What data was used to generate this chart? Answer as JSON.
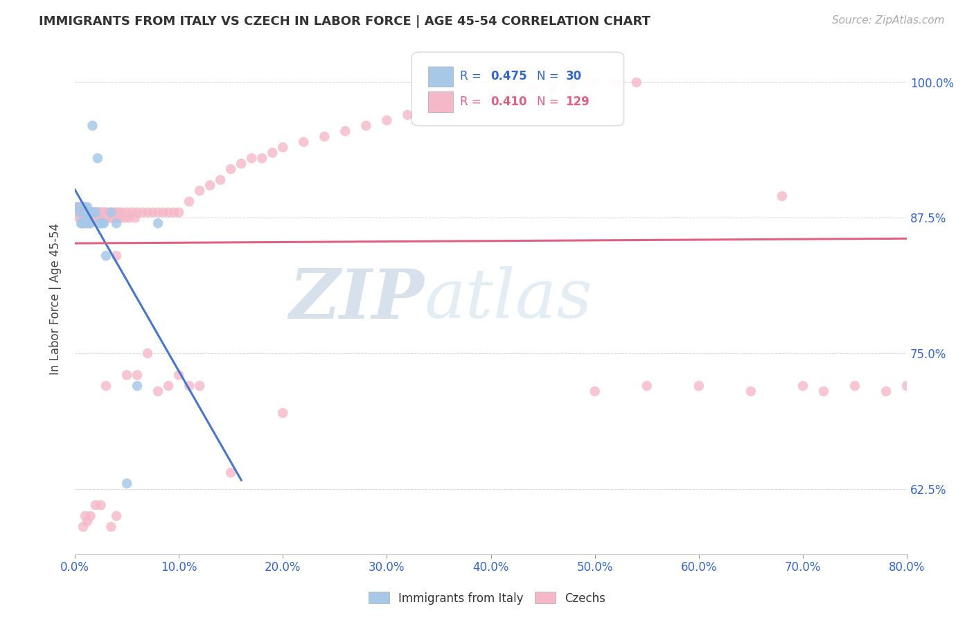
{
  "title": "IMMIGRANTS FROM ITALY VS CZECH IN LABOR FORCE | AGE 45-54 CORRELATION CHART",
  "source": "Source: ZipAtlas.com",
  "ylabel": "In Labor Force | Age 45-54",
  "ytick_values": [
    0.625,
    0.75,
    0.875,
    1.0
  ],
  "ytick_labels": [
    "62.5%",
    "75.0%",
    "87.5%",
    "100.0%"
  ],
  "xlim": [
    0.0,
    0.8
  ],
  "ylim": [
    0.565,
    1.035
  ],
  "r_italy": 0.475,
  "n_italy": 30,
  "r_czech": 0.41,
  "n_czech": 129,
  "italy_color": "#a8c8e8",
  "czech_color": "#f5b8c8",
  "italy_line_color": "#4477cc",
  "czech_line_color": "#e06080",
  "italy_x": [
    0.003,
    0.005,
    0.006,
    0.007,
    0.008,
    0.009,
    0.01,
    0.01,
    0.011,
    0.012,
    0.012,
    0.013,
    0.013,
    0.014,
    0.015,
    0.015,
    0.016,
    0.017,
    0.018,
    0.02,
    0.022,
    0.024,
    0.026,
    0.028,
    0.03,
    0.035,
    0.04,
    0.05,
    0.06,
    0.08
  ],
  "italy_y": [
    0.885,
    0.88,
    0.87,
    0.87,
    0.87,
    0.885,
    0.88,
    0.87,
    0.88,
    0.885,
    0.875,
    0.88,
    0.87,
    0.88,
    0.88,
    0.87,
    0.88,
    0.96,
    0.88,
    0.88,
    0.93,
    0.87,
    0.87,
    0.87,
    0.84,
    0.88,
    0.87,
    0.63,
    0.72,
    0.87
  ],
  "czech_x": [
    0.002,
    0.003,
    0.004,
    0.005,
    0.005,
    0.006,
    0.006,
    0.007,
    0.007,
    0.008,
    0.008,
    0.009,
    0.009,
    0.01,
    0.01,
    0.01,
    0.011,
    0.011,
    0.012,
    0.012,
    0.013,
    0.013,
    0.014,
    0.014,
    0.015,
    0.015,
    0.015,
    0.016,
    0.016,
    0.017,
    0.017,
    0.018,
    0.018,
    0.019,
    0.02,
    0.02,
    0.021,
    0.021,
    0.022,
    0.022,
    0.023,
    0.024,
    0.025,
    0.026,
    0.027,
    0.028,
    0.029,
    0.03,
    0.031,
    0.032,
    0.034,
    0.035,
    0.036,
    0.038,
    0.039,
    0.04,
    0.042,
    0.044,
    0.045,
    0.048,
    0.05,
    0.052,
    0.055,
    0.058,
    0.06,
    0.065,
    0.07,
    0.075,
    0.08,
    0.085,
    0.09,
    0.095,
    0.1,
    0.11,
    0.12,
    0.13,
    0.14,
    0.15,
    0.16,
    0.17,
    0.18,
    0.19,
    0.2,
    0.22,
    0.24,
    0.26,
    0.28,
    0.3,
    0.32,
    0.34,
    0.36,
    0.38,
    0.4,
    0.42,
    0.44,
    0.46,
    0.48,
    0.5,
    0.52,
    0.54,
    0.04,
    0.05,
    0.06,
    0.03,
    0.07,
    0.08,
    0.09,
    0.1,
    0.11,
    0.12,
    0.15,
    0.2,
    0.5,
    0.55,
    0.6,
    0.65,
    0.7,
    0.68,
    0.72,
    0.75,
    0.78,
    0.8,
    0.04,
    0.035,
    0.025,
    0.02,
    0.015,
    0.012,
    0.01,
    0.008
  ],
  "czech_y": [
    0.885,
    0.88,
    0.875,
    0.88,
    0.885,
    0.88,
    0.875,
    0.88,
    0.885,
    0.88,
    0.875,
    0.88,
    0.875,
    0.88,
    0.885,
    0.875,
    0.88,
    0.875,
    0.88,
    0.875,
    0.88,
    0.875,
    0.88,
    0.875,
    0.88,
    0.875,
    0.87,
    0.88,
    0.875,
    0.88,
    0.875,
    0.88,
    0.875,
    0.88,
    0.88,
    0.875,
    0.88,
    0.875,
    0.88,
    0.875,
    0.88,
    0.88,
    0.88,
    0.875,
    0.88,
    0.875,
    0.88,
    0.875,
    0.88,
    0.875,
    0.88,
    0.875,
    0.88,
    0.875,
    0.88,
    0.875,
    0.88,
    0.875,
    0.88,
    0.875,
    0.88,
    0.875,
    0.88,
    0.875,
    0.88,
    0.88,
    0.88,
    0.88,
    0.88,
    0.88,
    0.88,
    0.88,
    0.88,
    0.89,
    0.9,
    0.905,
    0.91,
    0.92,
    0.925,
    0.93,
    0.93,
    0.935,
    0.94,
    0.945,
    0.95,
    0.955,
    0.96,
    0.965,
    0.97,
    0.975,
    0.975,
    0.98,
    0.985,
    0.99,
    0.995,
    0.995,
    0.998,
    1.0,
    1.0,
    1.0,
    0.84,
    0.73,
    0.73,
    0.72,
    0.75,
    0.715,
    0.72,
    0.73,
    0.72,
    0.72,
    0.64,
    0.695,
    0.715,
    0.72,
    0.72,
    0.715,
    0.72,
    0.895,
    0.715,
    0.72,
    0.715,
    0.72,
    0.6,
    0.59,
    0.61,
    0.61,
    0.6,
    0.595,
    0.6,
    0.59
  ],
  "watermark_zip": "ZIP",
  "watermark_atlas": "atlas",
  "background_color": "#ffffff"
}
